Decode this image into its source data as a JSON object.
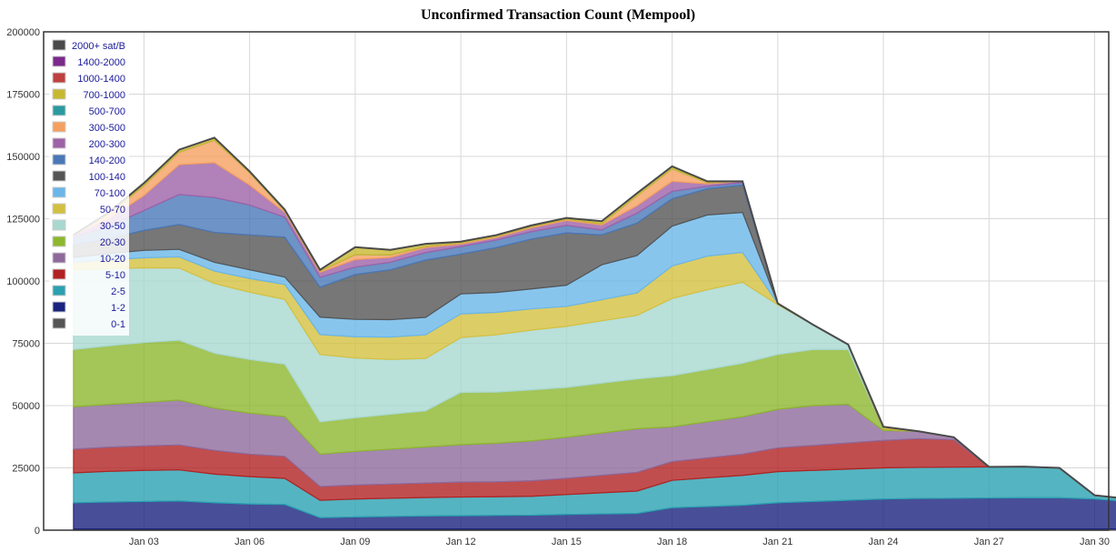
{
  "chart_data": {
    "type": "area",
    "title": "Unconfirmed Transaction Count (Mempool)",
    "xlabel": "",
    "ylabel": "",
    "stacked": true,
    "grid": true,
    "legend_position": "top-left",
    "x_ticks": [
      "Jan 03",
      "Jan 06",
      "Jan 09",
      "Jan 12",
      "Jan 15",
      "Jan 18",
      "Jan 21",
      "Jan 24",
      "Jan 27",
      "Jan 30"
    ],
    "y_ticks": [
      "0",
      "25000",
      "50000",
      "75000",
      "100000",
      "125000",
      "150000",
      "175000",
      "200000"
    ],
    "ylim": [
      0,
      200000
    ],
    "x": [
      1,
      2,
      3,
      4,
      5,
      6,
      7,
      8,
      9,
      10,
      11,
      12,
      13,
      14,
      15,
      16,
      17,
      18,
      19,
      20,
      21,
      22,
      23,
      24,
      25,
      26,
      27,
      28,
      29,
      30,
      31
    ],
    "series": [
      {
        "name": "0-1",
        "color": "#555555",
        "values": [
          500,
          500,
          500,
          500,
          500,
          500,
          500,
          500,
          500,
          500,
          500,
          500,
          500,
          500,
          500,
          500,
          500,
          500,
          500,
          500,
          500,
          500,
          500,
          500,
          500,
          500,
          500,
          500,
          500,
          500,
          500
        ]
      },
      {
        "name": "1-2",
        "color": "#1a237e",
        "values": [
          10500,
          10800,
          11000,
          11200,
          10500,
          10000,
          9800,
          4500,
          4800,
          5000,
          5200,
          5300,
          5400,
          5500,
          5800,
          6000,
          6200,
          8500,
          9000,
          9500,
          10500,
          11000,
          11500,
          12000,
          12200,
          12300,
          12400,
          12500,
          12500,
          12000,
          11000
        ]
      },
      {
        "name": "2-5",
        "color": "#2aa1b1",
        "values": [
          12000,
          12300,
          12500,
          12500,
          11500,
          11000,
          10500,
          7000,
          7200,
          7300,
          7400,
          7500,
          7500,
          7600,
          8000,
          8500,
          9000,
          11000,
          11500,
          12000,
          12500,
          12500,
          12500,
          12500,
          12500,
          12500,
          12500,
          12500,
          12000,
          1500,
          1000
        ]
      },
      {
        "name": "5-10",
        "color": "#b22222",
        "values": [
          9500,
          9700,
          9800,
          10000,
          9500,
          9000,
          8800,
          5500,
          5600,
          5700,
          5800,
          6000,
          6000,
          6200,
          6500,
          7000,
          7500,
          7500,
          8000,
          8500,
          9500,
          10000,
          10500,
          11000,
          11500,
          11000,
          0,
          0,
          0,
          0,
          0
        ]
      },
      {
        "name": "10-20",
        "color": "#8e6a9c",
        "values": [
          17000,
          17200,
          17500,
          18000,
          17000,
          16500,
          16000,
          13000,
          13500,
          14000,
          14500,
          15000,
          15500,
          16000,
          16500,
          17000,
          17500,
          14000,
          14500,
          15000,
          15500,
          16000,
          15500,
          4000,
          3000,
          1000,
          0,
          0,
          0,
          0,
          0
        ]
      },
      {
        "name": "20-30",
        "color": "#8db72e",
        "values": [
          23000,
          23500,
          24000,
          24000,
          22000,
          21500,
          21000,
          13000,
          13500,
          14000,
          14500,
          21000,
          20500,
          20500,
          20000,
          20000,
          20000,
          20500,
          21000,
          21500,
          22000,
          22500,
          22000,
          500,
          0,
          0,
          0,
          0,
          0,
          0,
          0
        ]
      },
      {
        "name": "30-50",
        "color": "#a8d8d0",
        "values": [
          32000,
          31000,
          30000,
          29000,
          28000,
          27000,
          26000,
          27000,
          24000,
          22000,
          21000,
          22000,
          23000,
          24000,
          24500,
          25000,
          25500,
          31000,
          32000,
          32500,
          20000,
          10000,
          2000,
          0,
          0,
          0,
          0,
          0,
          0,
          0,
          0
        ]
      },
      {
        "name": "50-70",
        "color": "#d4c040",
        "values": [
          3000,
          3500,
          4000,
          4500,
          5000,
          5500,
          6000,
          8000,
          8500,
          9000,
          9500,
          9500,
          9000,
          8500,
          8000,
          8500,
          9000,
          13000,
          13500,
          12000,
          500,
          0,
          0,
          0,
          0,
          0,
          0,
          0,
          0,
          0,
          0
        ]
      },
      {
        "name": "70-100",
        "color": "#6ab6e8",
        "values": [
          2000,
          2500,
          3000,
          3000,
          3500,
          3500,
          3000,
          7000,
          7000,
          7000,
          7000,
          8000,
          8000,
          8000,
          8500,
          14000,
          15000,
          16000,
          16500,
          16000,
          0,
          0,
          0,
          0,
          0,
          0,
          0,
          0,
          0,
          0,
          0
        ]
      },
      {
        "name": "100-140",
        "color": "#555555",
        "values": [
          5000,
          6000,
          8000,
          10000,
          12000,
          14000,
          16000,
          12000,
          18000,
          20000,
          23000,
          16000,
          18000,
          20000,
          21000,
          12000,
          13000,
          11000,
          10500,
          11000,
          0,
          0,
          0,
          0,
          0,
          0,
          0,
          0,
          0,
          0,
          0
        ]
      },
      {
        "name": "140-200",
        "color": "#4a78b8",
        "values": [
          3000,
          5000,
          8000,
          12000,
          14000,
          12000,
          8000,
          4000,
          3000,
          3000,
          3000,
          3000,
          3000,
          3000,
          3000,
          2000,
          4000,
          3000,
          1000,
          1000,
          0,
          0,
          0,
          0,
          0,
          0,
          0,
          0,
          0,
          0,
          0
        ]
      },
      {
        "name": "200-300",
        "color": "#9e62a8",
        "values": [
          1000,
          3000,
          6000,
          12000,
          14000,
          8000,
          2000,
          2000,
          3000,
          2000,
          2000,
          1000,
          1000,
          1500,
          2000,
          2000,
          3000,
          4000,
          1000,
          500,
          0,
          0,
          0,
          0,
          0,
          0,
          0,
          0,
          0,
          0,
          0
        ]
      },
      {
        "name": "300-500",
        "color": "#f5a060",
        "values": [
          0,
          2000,
          4000,
          5000,
          9000,
          5000,
          500,
          500,
          2000,
          1000,
          500,
          500,
          500,
          500,
          500,
          500,
          4000,
          5000,
          500,
          0,
          0,
          0,
          0,
          0,
          0,
          0,
          0,
          0,
          0,
          0,
          0
        ]
      },
      {
        "name": "500-700",
        "color": "#2a9aa0",
        "values": [
          0,
          0,
          0,
          0,
          0,
          0,
          0,
          0,
          0,
          0,
          0,
          0,
          0,
          0,
          0,
          0,
          0,
          0,
          0,
          0,
          0,
          0,
          0,
          0,
          0,
          0,
          0,
          0,
          0,
          0,
          0
        ]
      },
      {
        "name": "700-1000",
        "color": "#c8b830",
        "values": [
          0,
          500,
          1000,
          1000,
          1000,
          500,
          500,
          500,
          3000,
          2000,
          1000,
          500,
          500,
          500,
          500,
          1000,
          1000,
          1000,
          500,
          0,
          0,
          0,
          0,
          1000,
          0,
          0,
          0,
          0,
          0,
          0,
          0
        ]
      },
      {
        "name": "1000-1400",
        "color": "#c04040",
        "values": [
          0,
          0,
          0,
          0,
          0,
          0,
          0,
          0,
          0,
          0,
          0,
          0,
          0,
          0,
          0,
          0,
          0,
          0,
          0,
          0,
          0,
          0,
          0,
          0,
          0,
          0,
          0,
          0,
          0,
          0,
          0
        ]
      },
      {
        "name": "1400-2000",
        "color": "#7a2a8a",
        "values": [
          0,
          0,
          0,
          0,
          0,
          0,
          0,
          0,
          0,
          0,
          0,
          0,
          0,
          0,
          0,
          0,
          0,
          0,
          0,
          0,
          0,
          0,
          0,
          0,
          0,
          0,
          0,
          0,
          0,
          0,
          0
        ]
      },
      {
        "name": "2000+ sat/B",
        "color": "#4a4a4a",
        "values": [
          0,
          0,
          0,
          0,
          0,
          0,
          0,
          0,
          0,
          0,
          0,
          0,
          0,
          0,
          0,
          0,
          0,
          0,
          0,
          0,
          0,
          0,
          0,
          0,
          0,
          0,
          0,
          0,
          0,
          0,
          0
        ]
      }
    ]
  }
}
